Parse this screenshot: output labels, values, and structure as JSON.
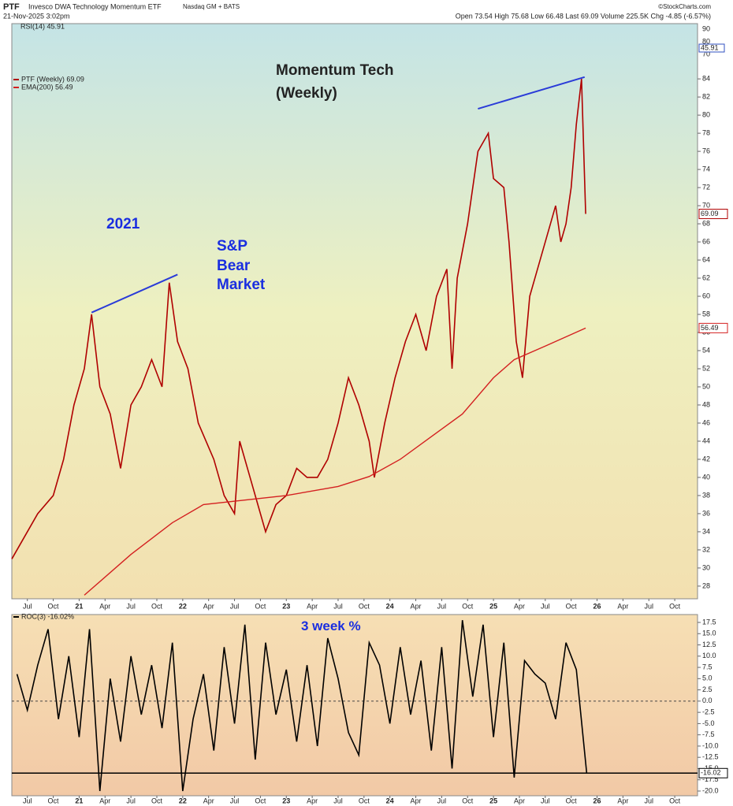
{
  "header": {
    "symbol": "PTF",
    "name": "Invesco DWA Technology Momentum ETF",
    "exchange": "Nasdaq GM + BATS",
    "date": "21-Nov-2025 3:02pm",
    "quote": "Open 73.54 High 75.68 Low 66.48 Last 69.09 Volume 225.5K Chg -4.85 (-6.57%)",
    "credit": "©StockCharts.com"
  },
  "chart_data": [
    {
      "type": "line",
      "annotations": [
        "Momentum Tech",
        "(Weekly)",
        "2021",
        "S&P",
        "Bear",
        "Market"
      ],
      "rsi": {
        "label": "RSI(14) 45.91",
        "value": 45.91,
        "ylim": [
          64.4,
          94.4
        ],
        "yticks": [
          70,
          80,
          90
        ]
      },
      "xlim": [
        2020.35,
        2026.97
      ],
      "xticks": [
        {
          "value": 2020.5,
          "label": "Jul"
        },
        {
          "value": 2020.75,
          "label": "Oct"
        },
        {
          "value": 2021,
          "label": "21"
        },
        {
          "value": 2021.25,
          "label": "Apr"
        },
        {
          "value": 2021.5,
          "label": "Jul"
        },
        {
          "value": 2021.75,
          "label": "Oct"
        },
        {
          "value": 2022,
          "label": "22"
        },
        {
          "value": 2022.25,
          "label": "Apr"
        },
        {
          "value": 2022.5,
          "label": "Jul"
        },
        {
          "value": 2022.75,
          "label": "Oct"
        },
        {
          "value": 2023,
          "label": "23"
        },
        {
          "value": 2023.25,
          "label": "Apr"
        },
        {
          "value": 2023.5,
          "label": "Jul"
        },
        {
          "value": 2023.75,
          "label": "Oct"
        },
        {
          "value": 2024,
          "label": "24"
        },
        {
          "value": 2024.25,
          "label": "Apr"
        },
        {
          "value": 2024.5,
          "label": "Jul"
        },
        {
          "value": 2024.75,
          "label": "Oct"
        },
        {
          "value": 2025,
          "label": "25"
        },
        {
          "value": 2025.25,
          "label": "Apr"
        },
        {
          "value": 2025.5,
          "label": "Jul"
        },
        {
          "value": 2025.75,
          "label": "Oct"
        },
        {
          "value": 2026,
          "label": "26"
        },
        {
          "value": 2026.25,
          "label": "Apr"
        },
        {
          "value": 2026.5,
          "label": "Jul"
        },
        {
          "value": 2026.75,
          "label": "Oct"
        }
      ],
      "ylim": [
        26.6,
        90.1
      ],
      "yticks": [
        28,
        30,
        32,
        34,
        36,
        38,
        40,
        42,
        44,
        46,
        48,
        50,
        52,
        54,
        56,
        58,
        60,
        62,
        64,
        66,
        68,
        70,
        72,
        74,
        76,
        78,
        80,
        82,
        84
      ],
      "series": [
        {
          "name": "PTF (Weekly) 69.09",
          "color": "#b00000",
          "x": [
            2020.35,
            2020.5,
            2020.6,
            2020.75,
            2020.85,
            2020.95,
            2021.05,
            2021.12,
            2021.2,
            2021.3,
            2021.4,
            2021.5,
            2021.6,
            2021.7,
            2021.8,
            2021.87,
            2021.95,
            2022.05,
            2022.15,
            2022.3,
            2022.4,
            2022.5,
            2022.55,
            2022.65,
            2022.75,
            2022.8,
            2022.9,
            2023.0,
            2023.1,
            2023.2,
            2023.3,
            2023.4,
            2023.5,
            2023.6,
            2023.7,
            2023.8,
            2023.85,
            2023.95,
            2024.05,
            2024.15,
            2024.25,
            2024.35,
            2024.45,
            2024.55,
            2024.6,
            2024.65,
            2024.75,
            2024.85,
            2024.95,
            2025.0,
            2025.1,
            2025.15,
            2025.22,
            2025.28,
            2025.35,
            2025.45,
            2025.55,
            2025.6,
            2025.65,
            2025.7,
            2025.75,
            2025.8,
            2025.85,
            2025.89
          ],
          "values": [
            31,
            34,
            36,
            38,
            42,
            48,
            52,
            58,
            50,
            47,
            41,
            48,
            50,
            53,
            50,
            61.5,
            55,
            52,
            46,
            42,
            38,
            36,
            44,
            40,
            36,
            34,
            37,
            38,
            41,
            40,
            40,
            42,
            46,
            51,
            48,
            44,
            40,
            46,
            51,
            55,
            58,
            54,
            60,
            63,
            52,
            62,
            68,
            76,
            78,
            73,
            72,
            66,
            55,
            51,
            60,
            64,
            68,
            70,
            66,
            68,
            72,
            79,
            84,
            69.09
          ]
        },
        {
          "name": "EMA(200) 56.49",
          "color": "#d42020",
          "x": [
            2021.05,
            2021.5,
            2021.9,
            2022.2,
            2022.6,
            2023.0,
            2023.5,
            2023.8,
            2024.1,
            2024.4,
            2024.7,
            2025.0,
            2025.2,
            2025.5,
            2025.89
          ],
          "values": [
            27,
            31.5,
            35,
            37,
            37.5,
            38,
            39,
            40.1,
            42,
            44.5,
            47,
            51,
            53,
            54.5,
            56.49
          ]
        }
      ],
      "trendlines": [
        {
          "color": "#2a3bd8",
          "points": [
            [
              2021.12,
              58.2
            ],
            [
              2021.95,
              62.4
            ]
          ]
        },
        {
          "color": "#2a3bd8",
          "points": [
            [
              2024.85,
              80.7
            ],
            [
              2025.88,
              84.2
            ]
          ]
        }
      ]
    },
    {
      "type": "line",
      "annotations": [
        "3 week %"
      ],
      "xlim": [
        2020.35,
        2026.97
      ],
      "xticks": [
        {
          "value": 2020.5,
          "label": "Jul"
        },
        {
          "value": 2020.75,
          "label": "Oct"
        },
        {
          "value": 2021,
          "label": "21"
        },
        {
          "value": 2021.25,
          "label": "Apr"
        },
        {
          "value": 2021.5,
          "label": "Jul"
        },
        {
          "value": 2021.75,
          "label": "Oct"
        },
        {
          "value": 2022,
          "label": "22"
        },
        {
          "value": 2022.25,
          "label": "Apr"
        },
        {
          "value": 2022.5,
          "label": "Jul"
        },
        {
          "value": 2022.75,
          "label": "Oct"
        },
        {
          "value": 2023,
          "label": "23"
        },
        {
          "value": 2023.25,
          "label": "Apr"
        },
        {
          "value": 2023.5,
          "label": "Jul"
        },
        {
          "value": 2023.75,
          "label": "Oct"
        },
        {
          "value": 2024,
          "label": "24"
        },
        {
          "value": 2024.25,
          "label": "Apr"
        },
        {
          "value": 2024.5,
          "label": "Jul"
        },
        {
          "value": 2024.75,
          "label": "Oct"
        },
        {
          "value": 2025,
          "label": "25"
        },
        {
          "value": 2025.25,
          "label": "Apr"
        },
        {
          "value": 2025.5,
          "label": "Jul"
        },
        {
          "value": 2025.75,
          "label": "Oct"
        },
        {
          "value": 2026,
          "label": "26"
        },
        {
          "value": 2026.25,
          "label": "Apr"
        },
        {
          "value": 2026.5,
          "label": "Jul"
        },
        {
          "value": 2026.75,
          "label": "Oct"
        }
      ],
      "ylim": [
        -21.05,
        19.25
      ],
      "yticks": [
        {
          "value": -20,
          "label": "-20.0"
        },
        -17.5,
        {
          "value": -15,
          "label": "-15.0"
        },
        -12.5,
        {
          "value": -10,
          "label": "-10.0"
        },
        -7.5,
        {
          "value": -5,
          "label": "-5.0"
        },
        -2.5,
        {
          "value": 0,
          "label": "0.0"
        },
        2.5,
        {
          "value": 5,
          "label": "5.0"
        },
        7.5,
        {
          "value": 10,
          "label": "10.0"
        },
        12.5,
        {
          "value": 15,
          "label": "15.0"
        },
        17.5
      ],
      "hline": 0,
      "series": [
        {
          "name": "ROC(3) -16.02%",
          "color": "#000000",
          "x": [
            2020.4,
            2020.5,
            2020.6,
            2020.7,
            2020.8,
            2020.9,
            2021.0,
            2021.1,
            2021.2,
            2021.3,
            2021.4,
            2021.5,
            2021.6,
            2021.7,
            2021.8,
            2021.9,
            2022.0,
            2022.1,
            2022.2,
            2022.3,
            2022.4,
            2022.5,
            2022.6,
            2022.7,
            2022.8,
            2022.9,
            2023.0,
            2023.1,
            2023.2,
            2023.3,
            2023.4,
            2023.5,
            2023.6,
            2023.7,
            2023.8,
            2023.9,
            2024.0,
            2024.1,
            2024.2,
            2024.3,
            2024.4,
            2024.5,
            2024.6,
            2024.7,
            2024.8,
            2024.9,
            2025.0,
            2025.1,
            2025.2,
            2025.3,
            2025.4,
            2025.5,
            2025.6,
            2025.7,
            2025.8,
            2025.9
          ],
          "values": [
            6,
            -2,
            8,
            16,
            -4,
            10,
            -8,
            16,
            -20,
            5,
            -9,
            10,
            -3,
            8,
            -6,
            13,
            -20,
            -4,
            6,
            -11,
            12,
            -5,
            17,
            -13,
            13,
            -3,
            7,
            -9,
            8,
            -10,
            14,
            5,
            -7,
            -12,
            13,
            8,
            -5,
            12,
            -3,
            9,
            -11,
            12,
            -15,
            18,
            1,
            17,
            -8,
            13,
            -17,
            9,
            6,
            4,
            -4,
            13,
            7,
            -16.02
          ]
        }
      ]
    }
  ]
}
